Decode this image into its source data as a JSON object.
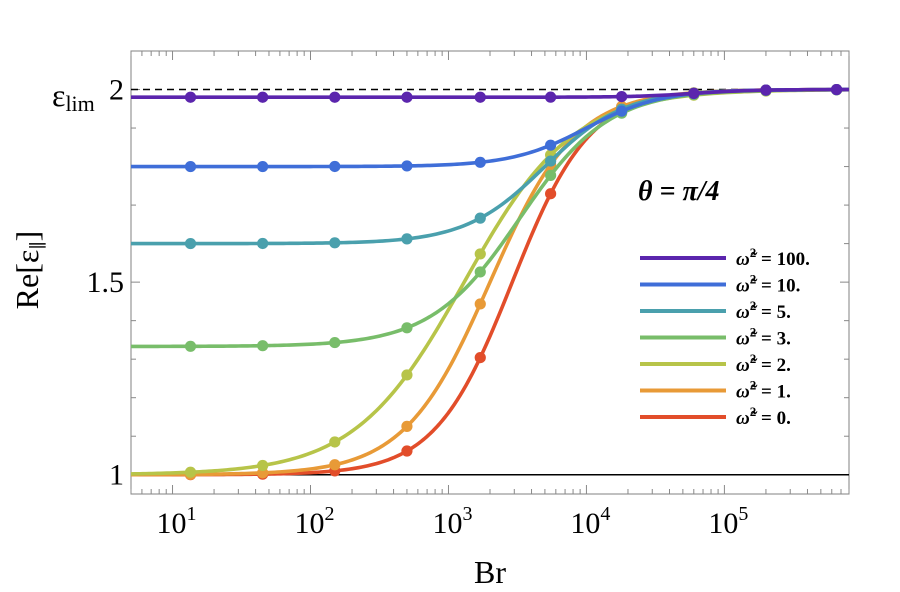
{
  "chart_data": {
    "type": "line",
    "xscale": "log",
    "xlim": [
      5,
      800000
    ],
    "ylim": [
      0.95,
      2.1
    ],
    "xlabel": "Br",
    "ylabel": "Re[ε∥]",
    "ylabel_parts": {
      "main": "Re[ε",
      "sub": "∥",
      "close": "]"
    },
    "x_ticks": [
      {
        "value": 10,
        "base": "10",
        "exp": "1"
      },
      {
        "value": 100,
        "base": "10",
        "exp": "2"
      },
      {
        "value": 1000,
        "base": "10",
        "exp": "3"
      },
      {
        "value": 10000,
        "base": "10",
        "exp": "4"
      },
      {
        "value": 100000,
        "base": "10",
        "exp": "5"
      }
    ],
    "y_ticks": [
      {
        "value": 1,
        "label": "1"
      },
      {
        "value": 1.5,
        "label": "1.5"
      },
      {
        "value": 2,
        "label": "2"
      }
    ],
    "epsilon_lim": {
      "value": 2.0,
      "label_main": "ε",
      "label_sub": "lim",
      "style": "dashed"
    },
    "baseline": {
      "value": 1.0
    },
    "annotation": "θ = π/4",
    "legend_position": "right",
    "marker_x": [
      13.5,
      45,
      150,
      500,
      1700,
      5500,
      18000,
      60000,
      200000,
      650000
    ],
    "series": [
      {
        "name": "ω̃² = 100.",
        "legend": {
          "symbol": "ω̃",
          "sup": "2",
          "rest": " = 100."
        },
        "color": "#5b25ad",
        "low": 1.98,
        "k": 2,
        "x0": 60000
      },
      {
        "name": "ω̃² = 10.",
        "legend": {
          "symbol": "ω̃",
          "sup": "2",
          "rest": " = 10."
        },
        "color": "#3f6ed8",
        "low": 1.8,
        "k": 1.6,
        "x0": 10000
      },
      {
        "name": "ω̃² = 5.",
        "legend": {
          "symbol": "ω̃",
          "sup": "2",
          "rest": " = 5."
        },
        "color": "#4aa0ad",
        "low": 1.6,
        "k": 1.5,
        "x0": 5000
      },
      {
        "name": "ω̃² = 3.",
        "legend": {
          "symbol": "ω̃",
          "sup": "2",
          "rest": " = 3."
        },
        "color": "#78bd6a",
        "low": 1.333,
        "k": 1.35,
        "x0": 3300
      },
      {
        "name": "ω̃² = 2.",
        "legend": {
          "symbol": "ω̃",
          "sup": "2",
          "rest": " = 2."
        },
        "color": "#b7c449",
        "low": 1.0,
        "k": 1.1,
        "x0": 1300
      },
      {
        "name": "ω̃² = 1.",
        "legend": {
          "symbol": "ω̃",
          "sup": "2",
          "rest": " = 1."
        },
        "color": "#e89a37",
        "low": 1.0,
        "k": 1.4,
        "x0": 2000
      },
      {
        "name": "ω̃² = 0.",
        "legend": {
          "symbol": "ω̃",
          "sup": "2",
          "rest": " = 0."
        },
        "color": "#e24d2a",
        "low": 1.0,
        "k": 1.55,
        "x0": 2900
      }
    ]
  }
}
